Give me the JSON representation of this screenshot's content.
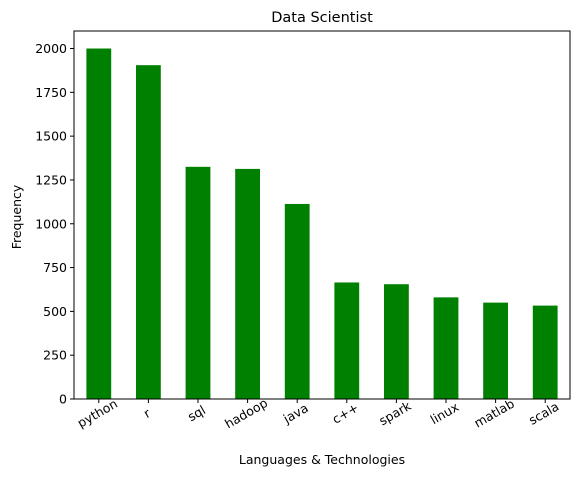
{
  "chart_data": {
    "type": "bar",
    "title": "Data Scientist",
    "xlabel": "Languages & Technologies",
    "ylabel": "Frequency",
    "categories": [
      "python",
      "r",
      "sql",
      "hadoop",
      "java",
      "c++",
      "spark",
      "linux",
      "matlab",
      "scala"
    ],
    "values": [
      2000,
      1905,
      1325,
      1313,
      1113,
      665,
      655,
      580,
      550,
      533
    ],
    "ylim": [
      0,
      2100
    ],
    "yticks": [
      0,
      250,
      500,
      750,
      1000,
      1250,
      1500,
      1750,
      2000
    ],
    "ytick_labels": [
      "0",
      "250",
      "500",
      "750",
      "1000",
      "1250",
      "1500",
      "1750",
      "2000"
    ],
    "xtick_rotation_deg": 30,
    "bar_color": "#008000",
    "grid": false,
    "legend": "none"
  }
}
